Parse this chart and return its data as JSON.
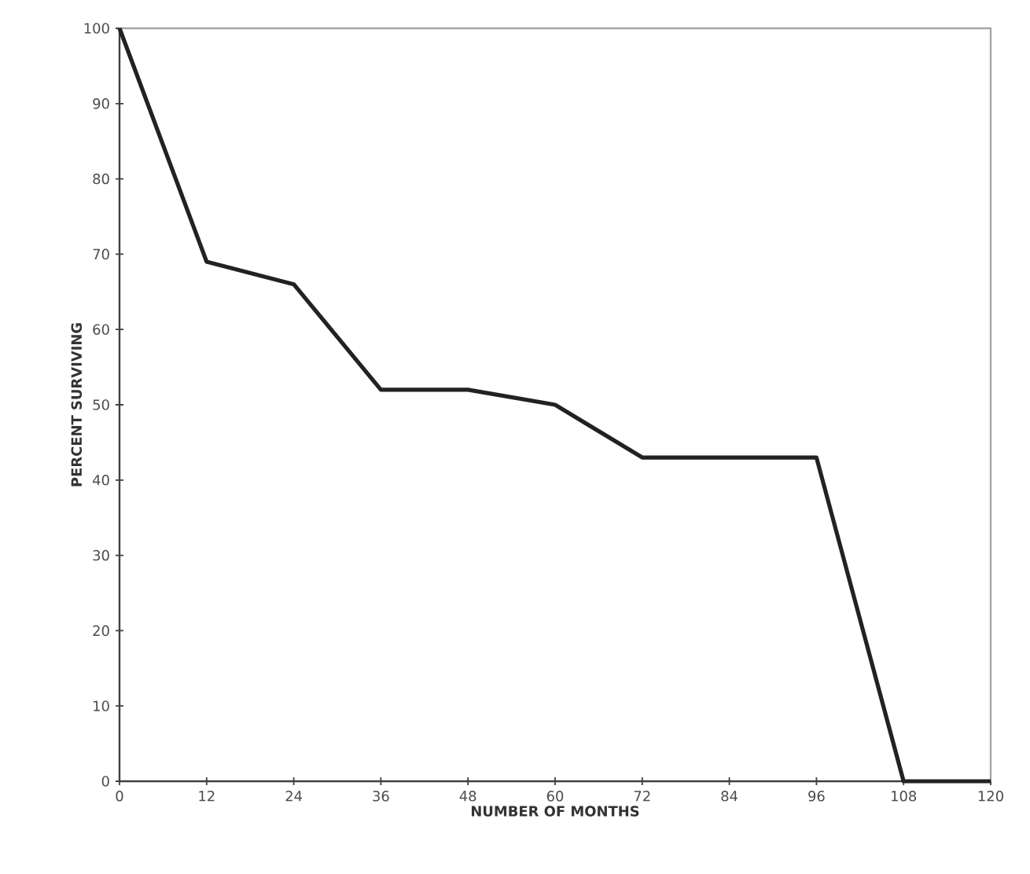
{
  "chart_data": {
    "type": "line",
    "xlabel": "NUMBER OF MONTHS",
    "ylabel": "PERCENT SURVIVING",
    "x": [
      0,
      12,
      24,
      36,
      48,
      60,
      72,
      84,
      96,
      108,
      120
    ],
    "series": [
      {
        "color": "#222222",
        "values": [
          100,
          69,
          66,
          52,
          52,
          50,
          43,
          43,
          43,
          0,
          0
        ]
      }
    ],
    "xlim": [
      0,
      120
    ],
    "xticks": [
      0,
      12,
      24,
      36,
      48,
      60,
      72,
      84,
      96,
      108,
      120
    ],
    "ylim": [
      0,
      100
    ],
    "yticks": [
      0,
      10,
      20,
      30,
      40,
      50,
      60,
      70,
      80,
      90,
      100
    ],
    "grid": false,
    "legend": false,
    "marker": "none",
    "line_style": "solid"
  }
}
